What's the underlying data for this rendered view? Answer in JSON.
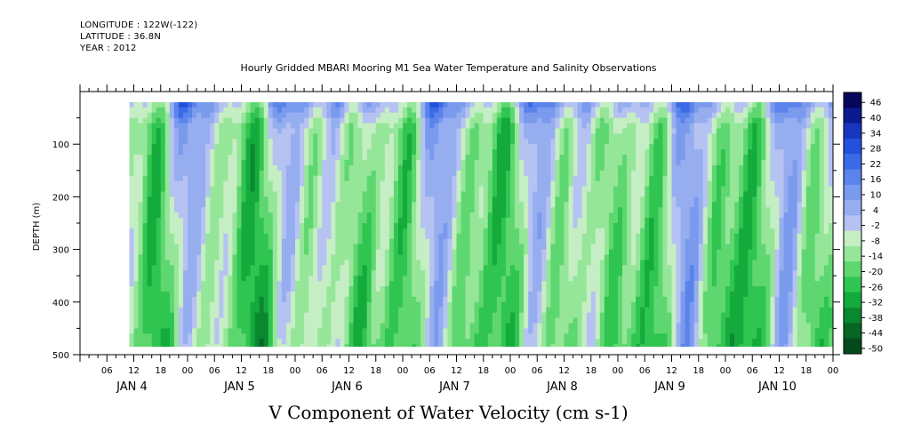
{
  "header": {
    "longitude": "LONGITUDE : 122W(-122)",
    "latitude": "LATITUDE : 36.8N",
    "year": "YEAR : 2012"
  },
  "chart_data": {
    "type": "heatmap",
    "title": "Hourly Gridded MBARI Mooring M1 Sea Water Temperature and Salinity Observations",
    "xlabel": "V Component of Water Velocity (cm s-1)",
    "ylabel": "DEPTH (m)",
    "y_axis": {
      "range": [
        0,
        500
      ],
      "inverted": true,
      "ticks": [
        100,
        200,
        300,
        400,
        500
      ],
      "tick_labels": [
        "100",
        "200",
        "300",
        "400",
        "500"
      ]
    },
    "x_axis": {
      "range_hours": [
        0,
        168
      ],
      "start": "JAN 4 00:00",
      "hour_ticks": [
        "06",
        "12",
        "18",
        "00",
        "06",
        "12",
        "18",
        "00",
        "06",
        "12",
        "18",
        "00",
        "06",
        "12",
        "18",
        "00",
        "06",
        "12",
        "18",
        "00",
        "06",
        "12",
        "18",
        "00",
        "06",
        "12",
        "18",
        "00"
      ],
      "day_labels": [
        "JAN 4",
        "JAN 5",
        "JAN 6",
        "JAN 7",
        "JAN 8",
        "JAN 9",
        "JAN 10"
      ]
    },
    "data_extent": {
      "x_hours": [
        11,
        168
      ],
      "depth_m": [
        20,
        485
      ]
    },
    "colorbar": {
      "levels": [
        -50,
        -44,
        -38,
        -32,
        -26,
        -20,
        -14,
        -8,
        -2,
        4,
        10,
        16,
        22,
        28,
        34,
        40,
        46
      ],
      "labels": [
        "46",
        "40",
        "34",
        "28",
        "22",
        "16",
        "10",
        "4",
        "-2",
        "-8",
        "-14",
        "-20",
        "-26",
        "-32",
        "-38",
        "-44",
        "-50"
      ],
      "colors": [
        "#06065a",
        "#0a1a90",
        "#1636c0",
        "#2350dc",
        "#3a6ae6",
        "#5a84ec",
        "#7a9aee",
        "#96aef0",
        "#b6c2f2",
        "#c6eec4",
        "#96e69a",
        "#5ed770",
        "#30c450",
        "#14aa3c",
        "#0a8830",
        "#066626",
        "#044a1c"
      ]
    }
  }
}
